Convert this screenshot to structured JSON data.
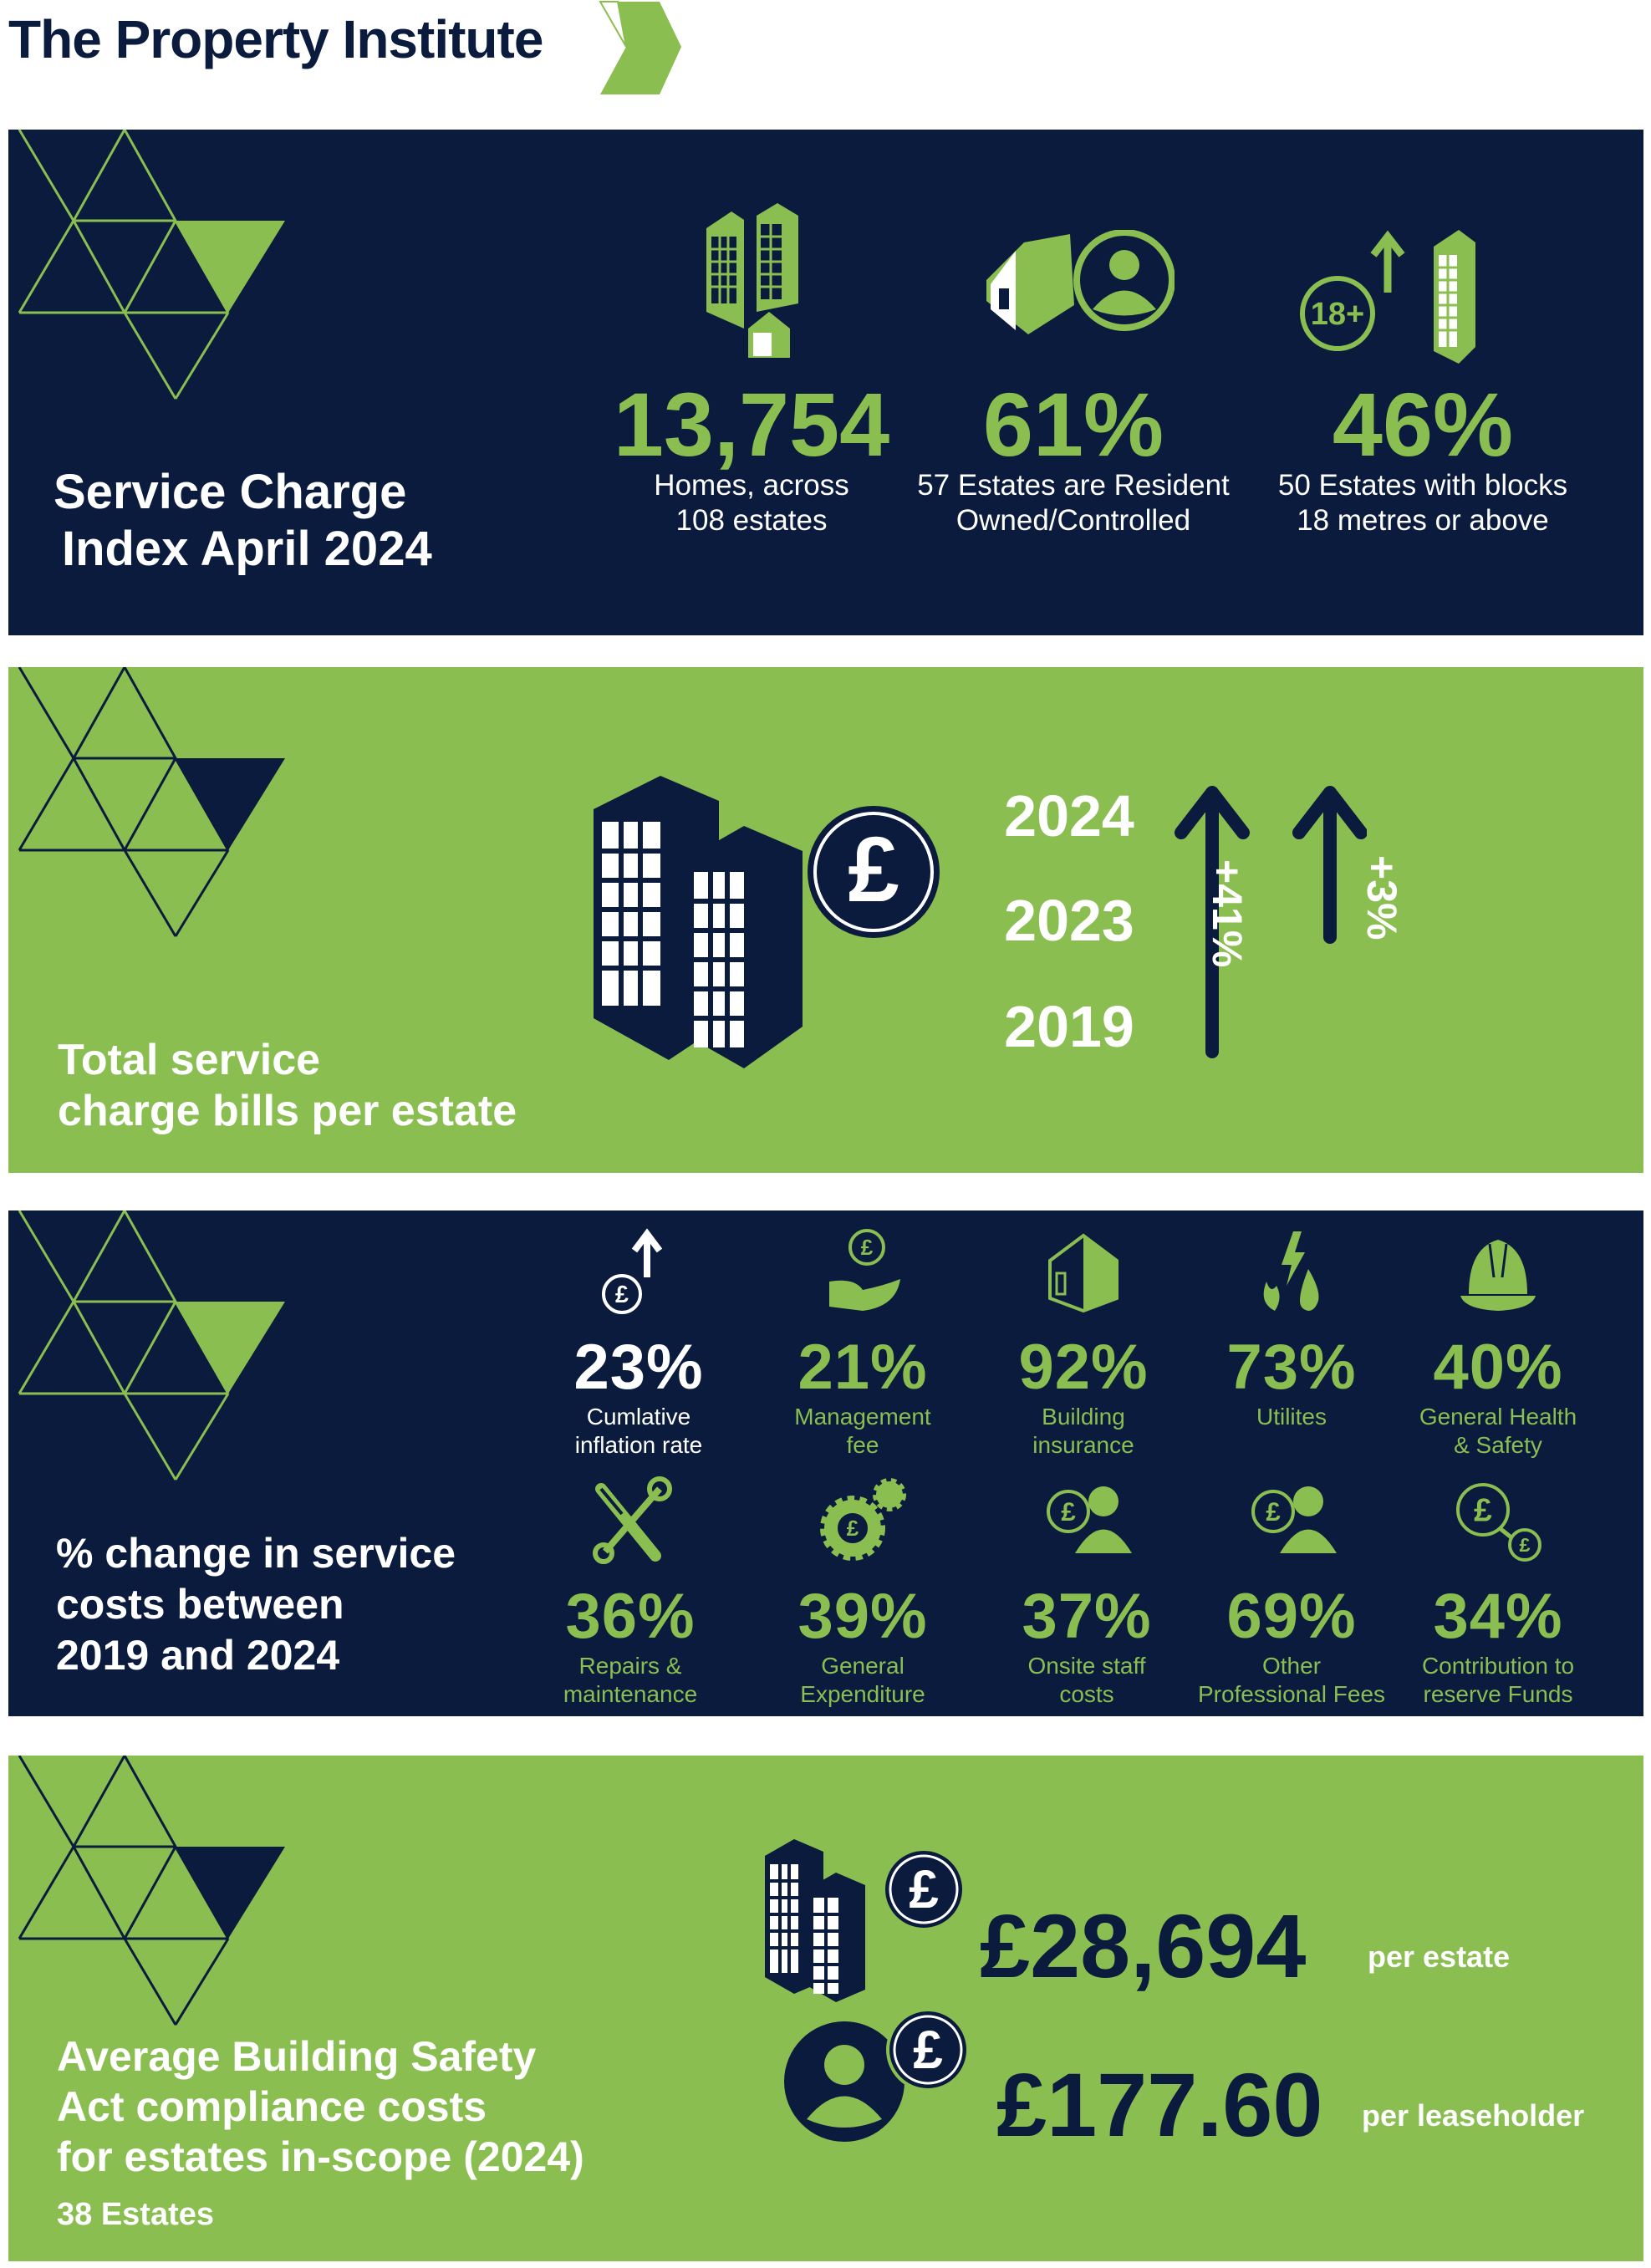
{
  "brand": {
    "name": "The Property Institute",
    "logo_icon": "chevron-logo"
  },
  "colors": {
    "navy": "#0a1b3d",
    "green": "#8abe51",
    "white": "#ffffff"
  },
  "section1": {
    "title_line1": "Service Charge",
    "title_line2": "Index April 2024",
    "stats": [
      {
        "value": "13,754",
        "label_line1": "Homes, across",
        "label_line2": "108 estates",
        "icon": "buildings-house-icon"
      },
      {
        "value": "61%",
        "label_line1": "57 Estates are Resident",
        "label_line2": "Owned/Controlled",
        "icon": "house-person-icon"
      },
      {
        "value": "46%",
        "label_line1": "50 Estates with blocks",
        "label_line2": "18 metres or above",
        "icon": "tall-building-18-plus-icon",
        "badge": "18+"
      }
    ]
  },
  "section2": {
    "title_line1": "Total service",
    "title_line2": "charge bills per estate",
    "years": [
      "2024",
      "2023",
      "2019"
    ],
    "changes": [
      {
        "label": "+41%",
        "from": "2019",
        "to": "2024"
      },
      {
        "label": "+3%",
        "from": "2023",
        "to": "2024"
      }
    ],
    "icon": "buildings-pound-icon"
  },
  "section3": {
    "title_line1": "% change in service",
    "title_line2": "costs between",
    "title_line3": "2019 and 2024",
    "items": [
      {
        "value": "23%",
        "line1": "Cumlative",
        "line2": "inflation rate",
        "icon": "pound-arrow-up-icon"
      },
      {
        "value": "21%",
        "line1": "Management",
        "line2": "fee",
        "icon": "hand-pound-icon"
      },
      {
        "value": "92%",
        "line1": "Building",
        "line2": "insurance",
        "icon": "house-icon"
      },
      {
        "value": "73%",
        "line1": "Utilites",
        "line2": "",
        "icon": "utilities-icon"
      },
      {
        "value": "40%",
        "line1": "General Health",
        "line2": "& Safety",
        "icon": "hard-hat-icon"
      },
      {
        "value": "36%",
        "line1": "Repairs &",
        "line2": "maintenance",
        "icon": "tools-icon"
      },
      {
        "value": "39%",
        "line1": "General",
        "line2": "Expenditure",
        "icon": "gears-pound-icon"
      },
      {
        "value": "37%",
        "line1": "Onsite staff",
        "line2": "costs",
        "icon": "person-pound-icon"
      },
      {
        "value": "69%",
        "line1": "Other",
        "line2": "Professional Fees",
        "icon": "person-pound-icon"
      },
      {
        "value": "34%",
        "line1": "Contribution to",
        "line2": "reserve Funds",
        "icon": "pound-transfer-icon"
      }
    ]
  },
  "section4": {
    "title_line1": "Average Building Safety",
    "title_line2": "Act compliance costs",
    "title_line3": "for estates in-scope (2024)",
    "subtitle": "38 Estates",
    "costs": [
      {
        "value": "£28,694",
        "unit": "per estate",
        "icon": "buildings-pound-icon"
      },
      {
        "value": "£177.60",
        "unit": "per leaseholder",
        "icon": "person-pound-icon"
      }
    ]
  }
}
